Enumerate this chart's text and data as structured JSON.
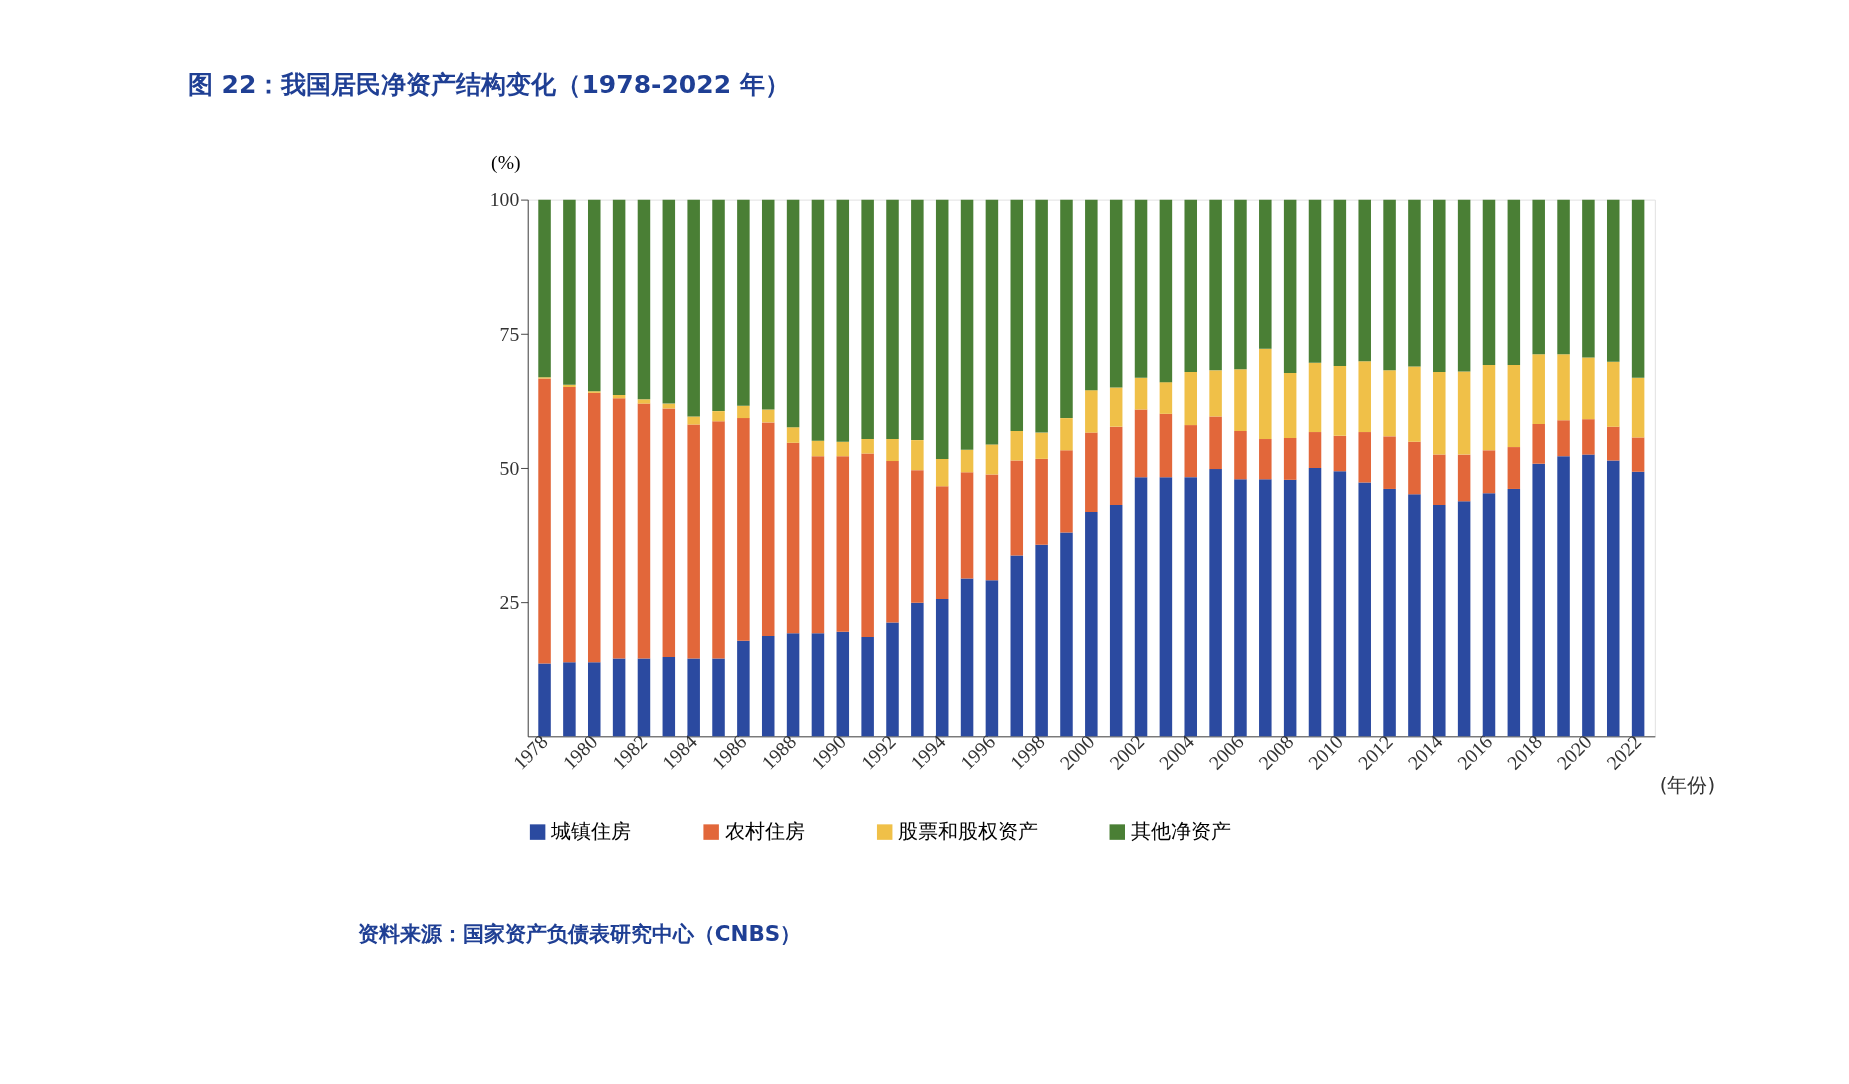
{
  "chart_data": {
    "type": "bar",
    "stacked": true,
    "title": "图 22：我国居民净资产结构变化（1978-2022 年）",
    "ylabel": "(%)",
    "xlabel": "(年份)",
    "categories": [
      "1978",
      null,
      "1980",
      null,
      "1982",
      null,
      "1984",
      null,
      "1986",
      null,
      "1988",
      null,
      "1990",
      null,
      "1992",
      null,
      "1994",
      null,
      "1996",
      null,
      "1998",
      null,
      "2000",
      null,
      "2002",
      null,
      "2004",
      null,
      "2006",
      null,
      "2008",
      null,
      "2010",
      null,
      "2012",
      null,
      "2014",
      null,
      "2016",
      null,
      "2018",
      null,
      "2020",
      null,
      "2022"
    ],
    "series": [
      {
        "name": "城镇住房",
        "color": "#2b4aa0",
        "values": [
          13.6,
          13.8,
          13.8,
          14.5,
          14.5,
          14.8,
          14.5,
          14.5,
          17.8,
          18.7,
          19.2,
          19.2,
          19.5,
          18.5,
          21.2,
          24.9,
          25.6,
          29.4,
          29.1,
          33.7,
          35.7,
          38.0,
          41.8,
          43.1,
          48.3,
          48.3,
          48.3,
          49.8,
          47.9,
          47.9,
          47.8,
          50.0,
          49.4,
          47.3,
          46.1,
          45.1,
          43.1,
          43.8,
          45.3,
          46.1,
          50.8,
          52.2,
          52.5,
          51.4,
          49.3
        ]
      },
      {
        "name": "农村住房",
        "color": "#e2673a",
        "values": [
          53.1,
          51.3,
          50.2,
          48.5,
          47.5,
          46.3,
          43.6,
          44.2,
          41.5,
          39.8,
          35.5,
          33.0,
          32.7,
          34.2,
          30.1,
          24.7,
          21.0,
          19.8,
          19.7,
          17.7,
          16.0,
          15.3,
          14.8,
          14.6,
          12.6,
          11.8,
          9.7,
          9.8,
          9.0,
          7.5,
          7.8,
          6.7,
          6.6,
          9.4,
          9.8,
          9.8,
          9.4,
          8.7,
          8.0,
          7.8,
          7.4,
          6.7,
          6.6,
          6.3,
          6.4
        ]
      },
      {
        "name": "股票和股权资产",
        "color": "#f0c048",
        "values": [
          0.2,
          0.4,
          0.3,
          0.6,
          0.8,
          0.9,
          1.5,
          1.9,
          2.3,
          2.4,
          2.9,
          2.9,
          2.7,
          2.7,
          4.1,
          5.6,
          5.1,
          4.2,
          5.6,
          5.5,
          4.9,
          6.0,
          7.9,
          7.3,
          5.9,
          5.9,
          9.9,
          8.6,
          11.5,
          16.8,
          12.1,
          12.9,
          13.0,
          13.2,
          12.3,
          14.0,
          15.4,
          15.5,
          15.9,
          15.3,
          13.0,
          12.3,
          11.5,
          12.1,
          11.1
        ]
      },
      {
        "name": "其他净资产",
        "color": "#4a7f35",
        "values": [
          33.1,
          34.5,
          35.7,
          36.4,
          37.2,
          38.0,
          40.4,
          39.4,
          38.4,
          39.1,
          42.4,
          44.9,
          45.1,
          44.6,
          44.6,
          44.8,
          48.3,
          46.6,
          45.6,
          43.1,
          43.4,
          40.7,
          35.5,
          35.0,
          33.2,
          34.0,
          32.1,
          31.8,
          31.6,
          27.8,
          32.3,
          30.4,
          31.0,
          30.1,
          31.8,
          31.1,
          32.1,
          32.0,
          30.8,
          30.8,
          28.8,
          28.8,
          29.4,
          30.2,
          33.2
        ]
      }
    ],
    "ylim": [
      0,
      100
    ],
    "yticks": [
      25,
      50,
      75,
      100
    ],
    "grid": false,
    "legend": "bottom",
    "annotations": [
      "资料来源：国家资产负债表研究中心（CNBS）"
    ]
  }
}
